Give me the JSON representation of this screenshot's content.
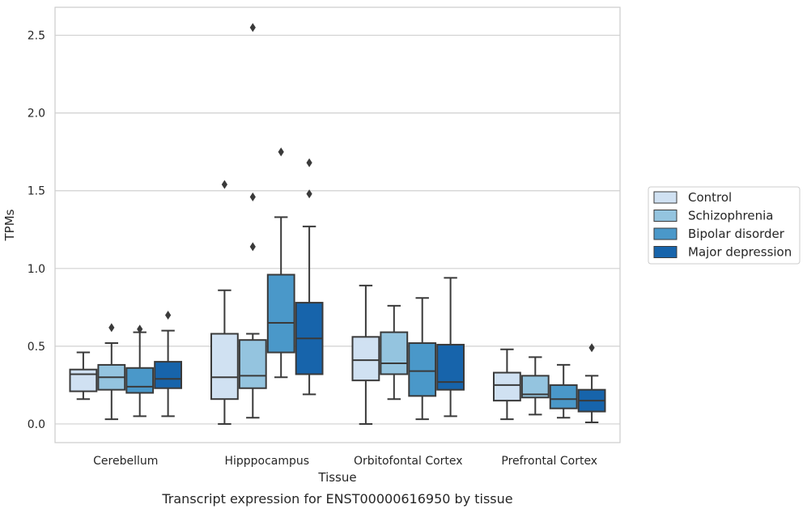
{
  "chart_data": {
    "type": "box",
    "xlabel": "Tissue",
    "ylabel": "TPMs",
    "caption": "Transcript expression for ENST00000616950 by tissue",
    "ylim": [
      -0.12,
      2.68
    ],
    "yticks": [
      "0.0",
      "0.5",
      "1.0",
      "1.5",
      "2.0",
      "2.5"
    ],
    "categories": [
      "Cerebellum",
      "Hipppocampus",
      "Orbitofontal Cortex",
      "Prefrontal Cortex"
    ],
    "grid": "horizontal",
    "legend_position": "right",
    "series": [
      {
        "name": "Control",
        "color": "#d0e1f2",
        "boxes": [
          {
            "min": 0.16,
            "q1": 0.21,
            "median": 0.32,
            "q3": 0.35,
            "max": 0.46,
            "outliers": []
          },
          {
            "min": 0.0,
            "q1": 0.16,
            "median": 0.3,
            "q3": 0.58,
            "max": 0.86,
            "outliers": [
              1.54
            ]
          },
          {
            "min": 0.0,
            "q1": 0.28,
            "median": 0.41,
            "q3": 0.56,
            "max": 0.89,
            "outliers": []
          },
          {
            "min": 0.03,
            "q1": 0.15,
            "median": 0.25,
            "q3": 0.33,
            "max": 0.48,
            "outliers": []
          }
        ]
      },
      {
        "name": "Schizophrenia",
        "color": "#94c4df",
        "boxes": [
          {
            "min": 0.03,
            "q1": 0.22,
            "median": 0.3,
            "q3": 0.38,
            "max": 0.52,
            "outliers": [
              0.62
            ]
          },
          {
            "min": 0.04,
            "q1": 0.23,
            "median": 0.31,
            "q3": 0.54,
            "max": 0.58,
            "outliers": [
              1.14,
              1.46,
              2.55
            ]
          },
          {
            "min": 0.16,
            "q1": 0.32,
            "median": 0.39,
            "q3": 0.59,
            "max": 0.76,
            "outliers": []
          },
          {
            "min": 0.06,
            "q1": 0.17,
            "median": 0.19,
            "q3": 0.31,
            "max": 0.43,
            "outliers": []
          }
        ]
      },
      {
        "name": "Bipolar disorder",
        "color": "#4a98c9",
        "boxes": [
          {
            "min": 0.05,
            "q1": 0.2,
            "median": 0.24,
            "q3": 0.36,
            "max": 0.59,
            "outliers": [
              0.61
            ]
          },
          {
            "min": 0.3,
            "q1": 0.46,
            "median": 0.65,
            "q3": 0.96,
            "max": 1.33,
            "outliers": [
              1.75
            ]
          },
          {
            "min": 0.03,
            "q1": 0.18,
            "median": 0.34,
            "q3": 0.52,
            "max": 0.81,
            "outliers": []
          },
          {
            "min": 0.04,
            "q1": 0.1,
            "median": 0.16,
            "q3": 0.25,
            "max": 0.38,
            "outliers": []
          }
        ]
      },
      {
        "name": "Major depression",
        "color": "#1764ab",
        "boxes": [
          {
            "min": 0.05,
            "q1": 0.23,
            "median": 0.29,
            "q3": 0.4,
            "max": 0.6,
            "outliers": [
              0.7
            ]
          },
          {
            "min": 0.19,
            "q1": 0.32,
            "median": 0.55,
            "q3": 0.78,
            "max": 1.27,
            "outliers": [
              1.48,
              1.68
            ]
          },
          {
            "min": 0.05,
            "q1": 0.22,
            "median": 0.27,
            "q3": 0.51,
            "max": 0.94,
            "outliers": []
          },
          {
            "min": 0.01,
            "q1": 0.08,
            "median": 0.15,
            "q3": 0.22,
            "max": 0.31,
            "outliers": [
              0.49
            ]
          }
        ]
      }
    ]
  }
}
